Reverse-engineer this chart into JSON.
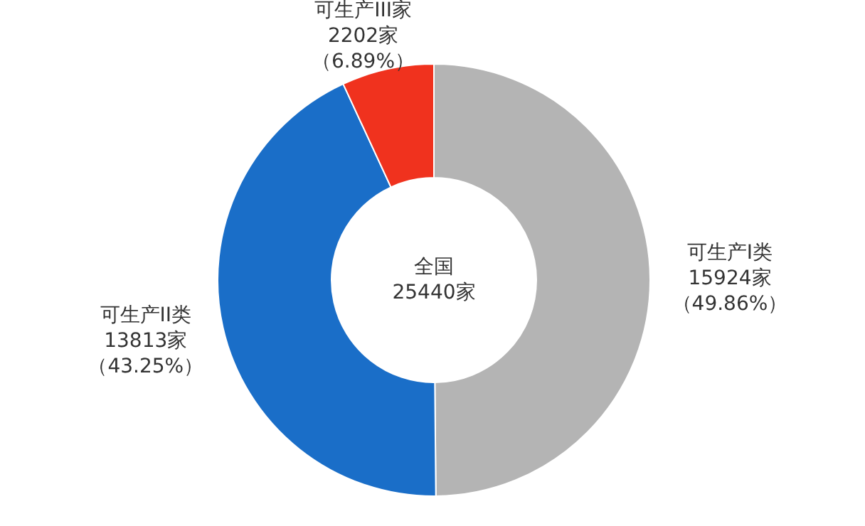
{
  "chart_data": {
    "type": "donut",
    "categories": [
      "可生产I类",
      "可生产II类",
      "可生产III家"
    ],
    "values": [
      15924,
      13813,
      2202
    ],
    "colors": [
      "#b4b4b4",
      "#1a6ec8",
      "#f0321e"
    ],
    "value_labels": [
      "15924家（49.86%）",
      "13813家（43.25%）",
      "2202家（6.89%）"
    ],
    "annotations": [
      "全国",
      "25440家"
    ]
  }
}
